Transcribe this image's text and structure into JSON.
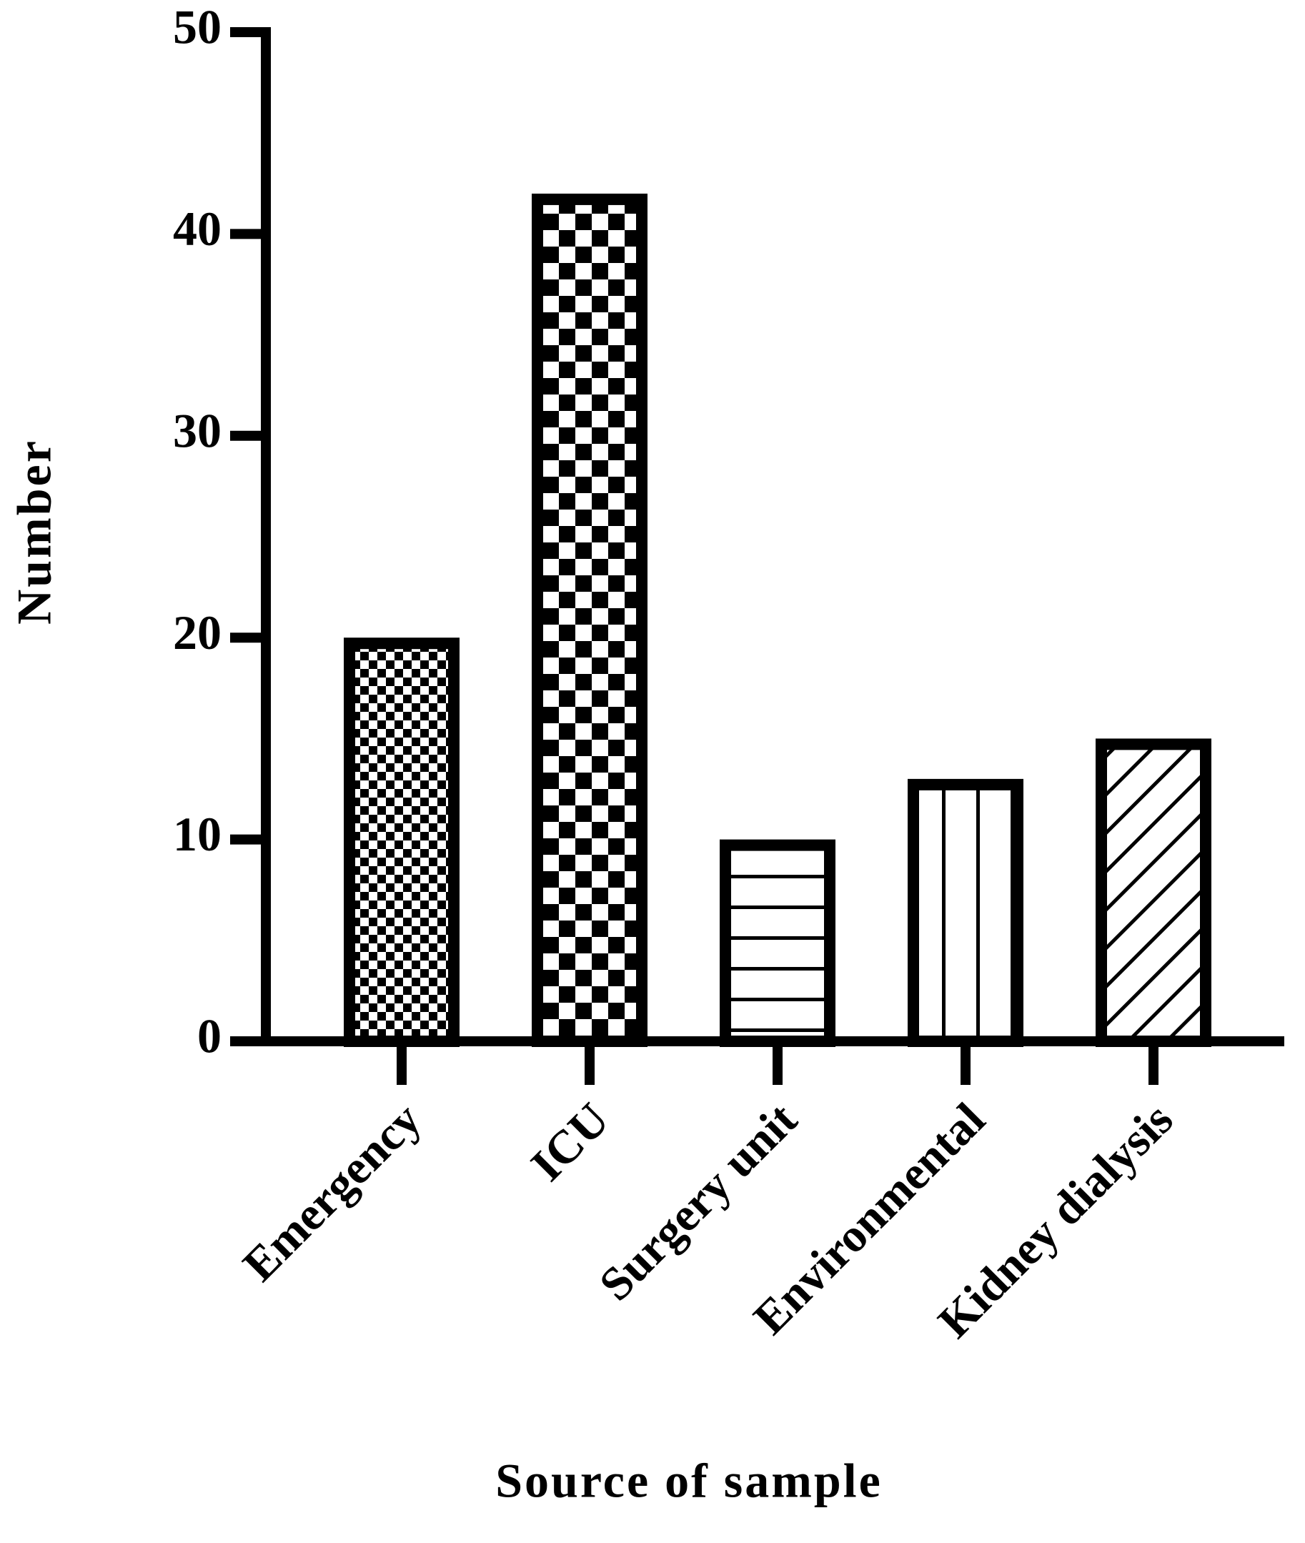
{
  "chart_data": {
    "type": "bar",
    "categories": [
      "Emergency",
      "ICU",
      "Surgery unit",
      "Environmental",
      "Kidney dialysis"
    ],
    "values": [
      20,
      42,
      10,
      13,
      15
    ],
    "patterns": [
      "checker-small",
      "checker-large",
      "horizontal",
      "vertical",
      "diagonal"
    ],
    "color": "#000000",
    "x_label": "Source of sample",
    "y_label": "Number",
    "ylim": [
      0,
      50
    ],
    "yticks": [
      0,
      10,
      20,
      30,
      40,
      50
    ],
    "grid": false
  }
}
